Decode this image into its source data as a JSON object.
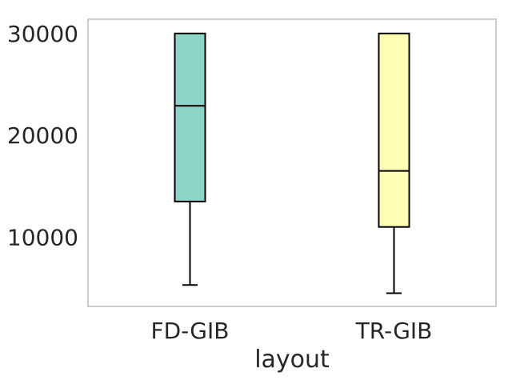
{
  "chart_data": {
    "type": "box",
    "title": "",
    "xlabel": "layout",
    "ylabel": "",
    "categories": [
      "FD-GIB",
      "TR-GIB"
    ],
    "boxes": [
      {
        "category": "FD-GIB",
        "whisker_low": 5300,
        "q1": 13500,
        "median": 22900,
        "q3": 30000,
        "whisker_high": 30000,
        "color": "#8fd4c8"
      },
      {
        "category": "TR-GIB",
        "whisker_low": 4500,
        "q1": 11000,
        "median": 16500,
        "q3": 30000,
        "whisker_high": 30000,
        "color": "#ffffb3"
      }
    ],
    "yticks": [
      10000,
      20000,
      30000
    ],
    "ytick_labels": [
      "10000",
      "20000",
      "30000"
    ],
    "ylim": [
      3200,
      31400
    ],
    "grid": false,
    "legend": "none"
  }
}
